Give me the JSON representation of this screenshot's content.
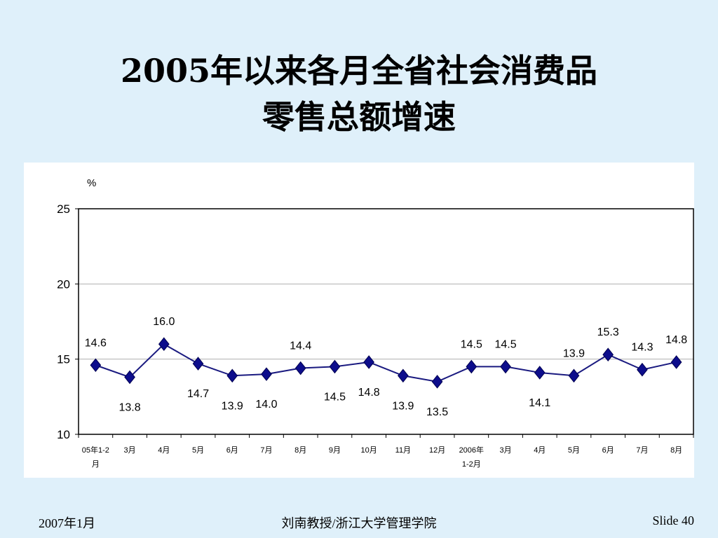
{
  "slide": {
    "title_line1": "2005年以来各月全省社会消费品",
    "title_line2": "零售总额增速",
    "footer_left": "2007年1月",
    "footer_center": "刘南教授/浙江大学管理学院",
    "footer_right": "Slide 40"
  },
  "colors": {
    "background": "#dff0fa",
    "series": "#1a1a80",
    "marker": "#0d0d8c"
  },
  "chart_data": {
    "type": "line",
    "title": "",
    "ylabel": "%",
    "xlabel": "",
    "ylim": [
      10,
      25
    ],
    "yticks": [
      10,
      15,
      20,
      25
    ],
    "grid": true,
    "categories": [
      [
        "05年1-2",
        "月"
      ],
      [
        "3月"
      ],
      [
        "4月"
      ],
      [
        "5月"
      ],
      [
        "6月"
      ],
      [
        "7月"
      ],
      [
        "8月"
      ],
      [
        "9月"
      ],
      [
        "10月"
      ],
      [
        "11月"
      ],
      [
        "12月"
      ],
      [
        "2006年",
        "1-2月"
      ],
      [
        "3月"
      ],
      [
        "4月"
      ],
      [
        "5月"
      ],
      [
        "6月"
      ],
      [
        "7月"
      ],
      [
        "8月"
      ]
    ],
    "series": [
      {
        "values": [
          14.6,
          13.8,
          16.0,
          14.7,
          13.9,
          14.0,
          14.4,
          14.5,
          14.8,
          13.9,
          13.5,
          14.5,
          14.5,
          14.1,
          13.9,
          15.3,
          14.3,
          14.8
        ],
        "data_labels": [
          "14.6",
          "13.8",
          "16.0",
          "14.7",
          "13.9",
          "14.0",
          "14.4",
          "14.5",
          "14.8",
          "13.9",
          "13.5",
          "14.5",
          "14.5",
          "14.1",
          "13.9",
          "15.3",
          "14.3",
          "14.8"
        ],
        "label_positions": [
          "above",
          "below",
          "above",
          "below",
          "below",
          "below",
          "above",
          "below",
          "below",
          "below",
          "below",
          "above",
          "above",
          "below",
          "above",
          "above",
          "above",
          "above"
        ]
      }
    ]
  }
}
